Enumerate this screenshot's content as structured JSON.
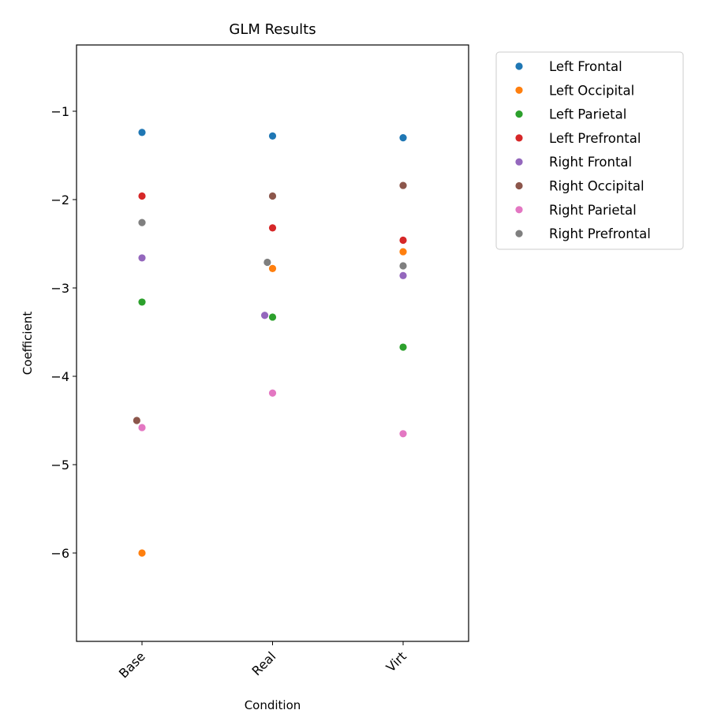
{
  "chart_data": {
    "type": "scatter",
    "title": "GLM Results",
    "xlabel": "Condition",
    "ylabel": "Coefficient",
    "categories": [
      "Base",
      "Real",
      "Virt"
    ],
    "ylim": [
      -7.0,
      -0.25
    ],
    "yticks": [
      -6,
      -5,
      -4,
      -3,
      -2,
      -1
    ],
    "grid": false,
    "legend_position": "outside-right",
    "series": [
      {
        "name": "Left Frontal",
        "color": "#1f77b4",
        "values": [
          -1.24,
          -1.28,
          -1.3
        ],
        "jitter": [
          0,
          0,
          0
        ]
      },
      {
        "name": "Left Occipital",
        "color": "#ff7f0e",
        "values": [
          -6.0,
          -2.78,
          -2.59
        ],
        "jitter": [
          0,
          0,
          0
        ]
      },
      {
        "name": "Left Parietal",
        "color": "#2ca02c",
        "values": [
          -3.16,
          -3.33,
          -3.67
        ],
        "jitter": [
          0,
          0,
          0
        ]
      },
      {
        "name": "Left Prefrontal",
        "color": "#d62728",
        "values": [
          -1.96,
          -2.32,
          -2.46
        ],
        "jitter": [
          0,
          0,
          0
        ]
      },
      {
        "name": "Right Frontal",
        "color": "#9467bd",
        "values": [
          -2.66,
          -3.31,
          -2.86
        ],
        "jitter": [
          0,
          -0.06,
          0
        ]
      },
      {
        "name": "Right Occipital",
        "color": "#8c564b",
        "values": [
          -4.5,
          -1.96,
          -1.84
        ],
        "jitter": [
          -0.04,
          0,
          0
        ]
      },
      {
        "name": "Right Parietal",
        "color": "#e377c2",
        "values": [
          -4.58,
          -4.19,
          -4.65
        ],
        "jitter": [
          0,
          0,
          0
        ]
      },
      {
        "name": "Right Prefrontal",
        "color": "#7f7f7f",
        "values": [
          -2.26,
          -2.71,
          -2.75
        ],
        "jitter": [
          0,
          -0.04,
          0
        ]
      }
    ]
  }
}
